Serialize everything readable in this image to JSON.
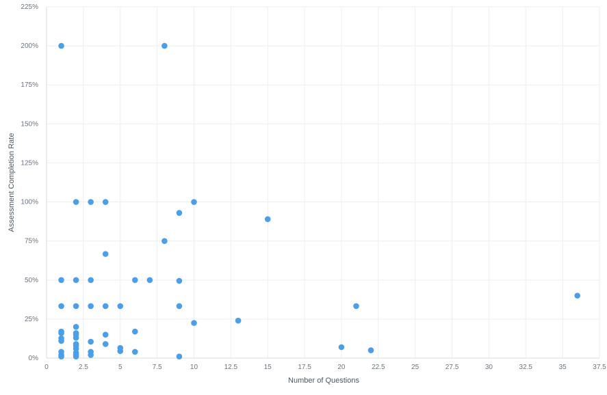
{
  "chart_data": {
    "type": "scatter",
    "xlabel": "Number of Questions",
    "ylabel": "Assessment Completion Rate",
    "xlim": [
      0,
      37.5
    ],
    "ylim": [
      0,
      225
    ],
    "xticks": [
      "0",
      "2.5",
      "5",
      "7.5",
      "10",
      "12.5",
      "15",
      "17.5",
      "20",
      "22.5",
      "25",
      "27.5",
      "30",
      "32.5",
      "35",
      "37.5"
    ],
    "yticks": [
      "0%",
      "25%",
      "50%",
      "75%",
      "100%",
      "125%",
      "150%",
      "175%",
      "200%",
      "225%"
    ],
    "grid": true,
    "color": "#4a9fe8",
    "points": [
      [
        1,
        200
      ],
      [
        8,
        200
      ],
      [
        2,
        100
      ],
      [
        3,
        100
      ],
      [
        4,
        100
      ],
      [
        10,
        100
      ],
      [
        9,
        93
      ],
      [
        15,
        89
      ],
      [
        8,
        75
      ],
      [
        4,
        66.7
      ],
      [
        1,
        50
      ],
      [
        2,
        50
      ],
      [
        3,
        50
      ],
      [
        6,
        50
      ],
      [
        7,
        50
      ],
      [
        9,
        49.5
      ],
      [
        1,
        33.3
      ],
      [
        2,
        33.3
      ],
      [
        3,
        33.3
      ],
      [
        4,
        33.3
      ],
      [
        5,
        33.3
      ],
      [
        9,
        33.3
      ],
      [
        21,
        33.3
      ],
      [
        36,
        40
      ],
      [
        10,
        22.5
      ],
      [
        13,
        24
      ],
      [
        1,
        17
      ],
      [
        1,
        16
      ],
      [
        1,
        12.7
      ],
      [
        1,
        11
      ],
      [
        1,
        4
      ],
      [
        1,
        2
      ],
      [
        1,
        1
      ],
      [
        2,
        20
      ],
      [
        2,
        16
      ],
      [
        2,
        15
      ],
      [
        2,
        13
      ],
      [
        2,
        9
      ],
      [
        2,
        8
      ],
      [
        2,
        6
      ],
      [
        2,
        3.5
      ],
      [
        2,
        2
      ],
      [
        2,
        1
      ],
      [
        3,
        10.5
      ],
      [
        3,
        4
      ],
      [
        3,
        2
      ],
      [
        4,
        15
      ],
      [
        4,
        9
      ],
      [
        5,
        6.5
      ],
      [
        5,
        4.5
      ],
      [
        6,
        17
      ],
      [
        6,
        4
      ],
      [
        9,
        1
      ],
      [
        20,
        7
      ],
      [
        22,
        5
      ]
    ]
  }
}
